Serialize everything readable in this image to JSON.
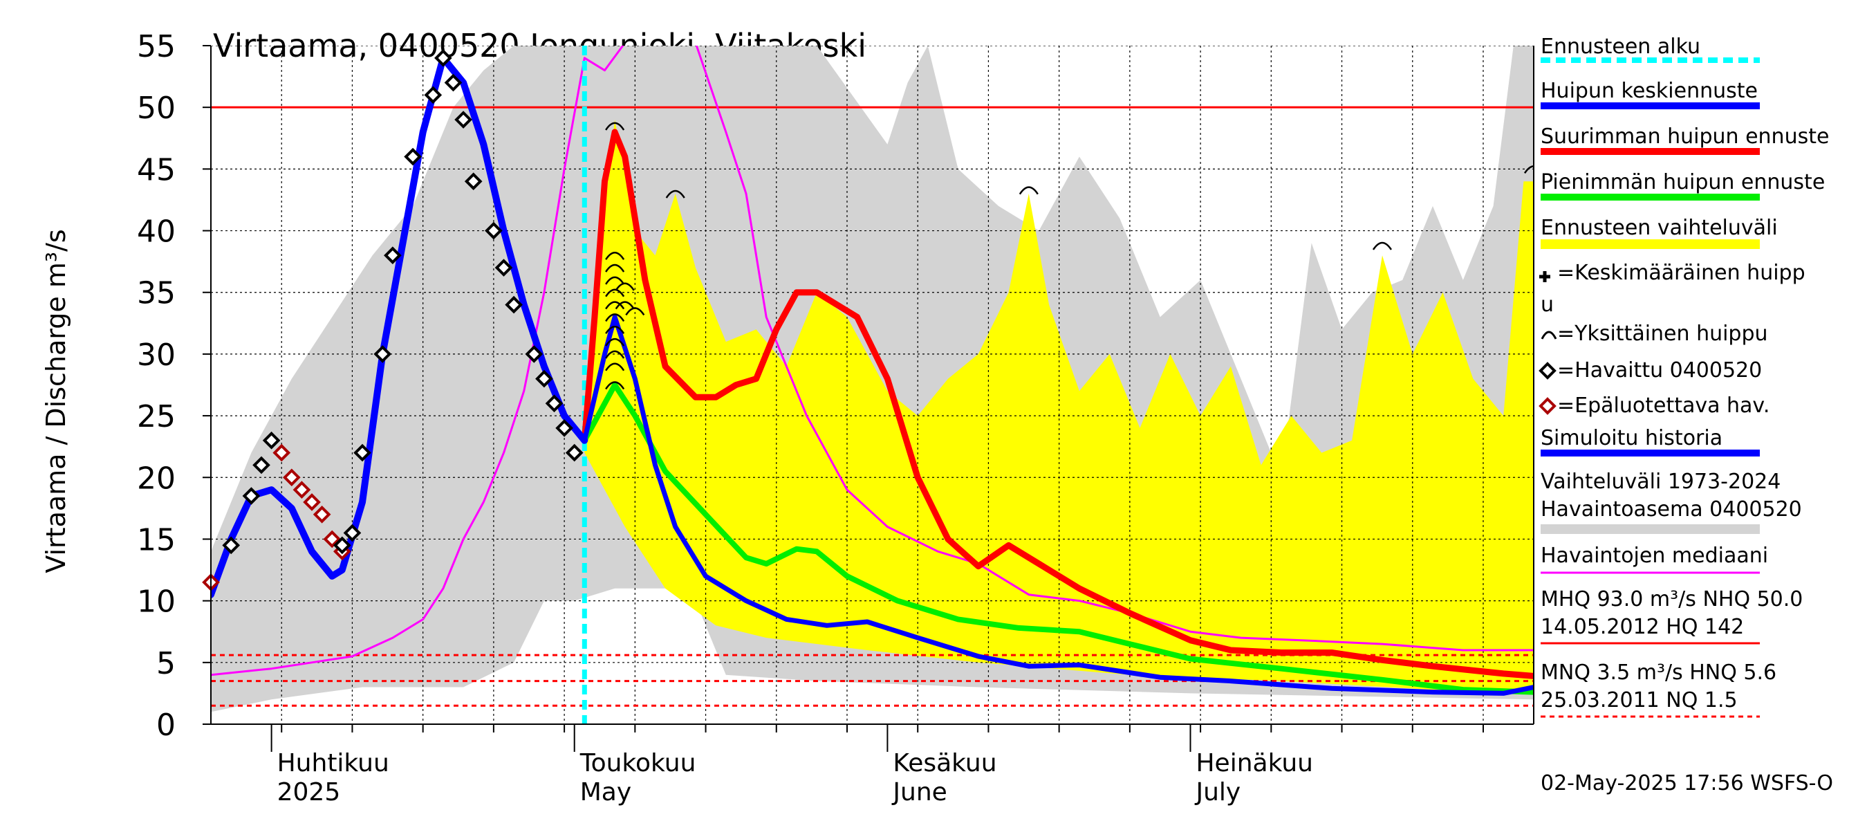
{
  "title": "Virtaama, 0400520 Jongunjoki, Viitakoski",
  "footer": "02-May-2025 17:56 WSFS-O",
  "legend": {
    "forecast_start": "Ennusteen alku",
    "mean_peak_forecast": "Huipun keskiennuste",
    "max_peak_forecast": "Suurimman huipun ennuste",
    "min_peak_forecast": "Pienimmän huipun ennuste",
    "forecast_range": "Ennusteen vaihteluväli",
    "avg_peak_line1": "=Keskimääräinen huipp",
    "avg_peak_line2": "u",
    "single_peak": "=Yksittäinen huippu",
    "observed": "=Havaittu 0400520",
    "unreliable": "=Epäluotettava hav.",
    "simulated": "Simuloitu historia",
    "range_line1": "Vaihteluväli 1973-2024",
    "range_line2": " Havaintoasema 0400520",
    "median": "Havaintojen mediaani",
    "stats1_line1": "MHQ 93.0 m³/s NHQ 50.0",
    "stats1_line2": "14.05.2012 HQ  142",
    "stats2_line1": "MNQ  3.5 m³/s HNQ  5.6",
    "stats2_line2": "25.03.2011 NQ  1.5"
  },
  "colors": {
    "history_range": "#d3d3d3",
    "forecast_range": "#ffff00",
    "mean": "#0000ff",
    "max": "#ff0000",
    "min": "#00ee00",
    "median": "#ff00ff",
    "forecast_start": "#00ffff",
    "observed": "#000000",
    "unreliable": "#aa0000",
    "ref_line": "#ff0000"
  },
  "chart_data": {
    "type": "line",
    "title": "Virtaama, 0400520 Jongunjoki, Viitakoski",
    "ylabel": "Virtaama / Discharge    m³/s",
    "ylim": [
      0,
      55
    ],
    "y_ticks": [
      0,
      5,
      10,
      15,
      20,
      25,
      30,
      35,
      40,
      45,
      50,
      55
    ],
    "x_range": [
      "2025-03-26",
      "2025-08-04"
    ],
    "month_labels": [
      {
        "date": "2025-04-01",
        "fi": "Huhtikuu",
        "en": "2025"
      },
      {
        "date": "2025-05-01",
        "fi": "Toukokuu",
        "en": "May"
      },
      {
        "date": "2025-06-01",
        "fi": "Kesäkuu",
        "en": "June"
      },
      {
        "date": "2025-07-01",
        "fi": "Heinäkuu",
        "en": "July"
      }
    ],
    "forecast_start": "2025-05-02",
    "reference_lines": [
      {
        "value": 50.0,
        "style": "solid"
      },
      {
        "value": 5.6,
        "style": "dashed"
      },
      {
        "value": 3.5,
        "style": "dashed"
      },
      {
        "value": 1.5,
        "style": "dashed"
      }
    ],
    "grid": true,
    "legend_position": "right",
    "history_range_upper": [
      [
        "2025-03-26",
        14
      ],
      [
        "2025-03-30",
        22
      ],
      [
        "2025-04-03",
        28
      ],
      [
        "2025-04-07",
        33
      ],
      [
        "2025-04-11",
        38
      ],
      [
        "2025-04-15",
        42
      ],
      [
        "2025-04-19",
        50
      ],
      [
        "2025-04-22",
        53
      ],
      [
        "2025-04-25",
        55
      ],
      [
        "2025-05-01",
        55
      ],
      [
        "2025-05-15",
        55
      ],
      [
        "2025-05-25",
        55
      ],
      [
        "2025-06-01",
        47
      ],
      [
        "2025-06-03",
        52
      ],
      [
        "2025-06-05",
        55
      ],
      [
        "2025-06-08",
        45
      ],
      [
        "2025-06-12",
        42
      ],
      [
        "2025-06-16",
        40
      ],
      [
        "2025-06-20",
        46
      ],
      [
        "2025-06-24",
        41
      ],
      [
        "2025-06-28",
        33
      ],
      [
        "2025-07-02",
        36
      ],
      [
        "2025-07-06",
        28
      ],
      [
        "2025-07-10",
        20
      ],
      [
        "2025-07-13",
        39
      ],
      [
        "2025-07-16",
        32
      ],
      [
        "2025-07-19",
        35
      ],
      [
        "2025-07-22",
        36
      ],
      [
        "2025-07-25",
        42
      ],
      [
        "2025-07-28",
        36
      ],
      [
        "2025-07-31",
        42
      ],
      [
        "2025-08-02",
        55
      ],
      [
        "2025-08-04",
        55
      ]
    ],
    "history_range_lower": [
      [
        "2025-03-26",
        1
      ],
      [
        "2025-04-01",
        2
      ],
      [
        "2025-04-10",
        3
      ],
      [
        "2025-04-20",
        3
      ],
      [
        "2025-04-25",
        5
      ],
      [
        "2025-04-28",
        10
      ],
      [
        "2025-05-01",
        10
      ],
      [
        "2025-05-05",
        11
      ],
      [
        "2025-05-10",
        11
      ],
      [
        "2025-05-13",
        10
      ],
      [
        "2025-05-16",
        4
      ],
      [
        "2025-05-25",
        3.5
      ],
      [
        "2025-06-10",
        3
      ],
      [
        "2025-07-01",
        2.5
      ],
      [
        "2025-08-04",
        2
      ]
    ],
    "forecast_range_upper": [
      [
        "2025-05-02",
        22
      ],
      [
        "2025-05-03",
        35
      ],
      [
        "2025-05-05",
        49
      ],
      [
        "2025-05-07",
        40
      ],
      [
        "2025-05-09",
        38
      ],
      [
        "2025-05-11",
        43
      ],
      [
        "2025-05-13",
        37
      ],
      [
        "2025-05-16",
        31
      ],
      [
        "2025-05-19",
        32
      ],
      [
        "2025-05-22",
        29
      ],
      [
        "2025-05-25",
        35
      ],
      [
        "2025-05-28",
        33
      ],
      [
        "2025-06-01",
        27
      ],
      [
        "2025-06-04",
        25
      ],
      [
        "2025-06-07",
        28
      ],
      [
        "2025-06-10",
        30
      ],
      [
        "2025-06-13",
        35
      ],
      [
        "2025-06-15",
        43
      ],
      [
        "2025-06-17",
        34
      ],
      [
        "2025-06-20",
        27
      ],
      [
        "2025-06-23",
        30
      ],
      [
        "2025-06-26",
        24
      ],
      [
        "2025-06-29",
        30
      ],
      [
        "2025-07-02",
        25
      ],
      [
        "2025-07-05",
        29
      ],
      [
        "2025-07-08",
        21
      ],
      [
        "2025-07-11",
        25
      ],
      [
        "2025-07-14",
        22
      ],
      [
        "2025-07-17",
        23
      ],
      [
        "2025-07-20",
        38
      ],
      [
        "2025-07-23",
        30
      ],
      [
        "2025-07-26",
        35
      ],
      [
        "2025-07-29",
        28
      ],
      [
        "2025-08-01",
        25
      ],
      [
        "2025-08-03",
        44
      ],
      [
        "2025-08-04",
        44
      ]
    ],
    "forecast_range_lower": [
      [
        "2025-05-02",
        22
      ],
      [
        "2025-05-06",
        16
      ],
      [
        "2025-05-10",
        11
      ],
      [
        "2025-05-15",
        8
      ],
      [
        "2025-05-20",
        7
      ],
      [
        "2025-05-30",
        6
      ],
      [
        "2025-06-10",
        5
      ],
      [
        "2025-06-25",
        4
      ],
      [
        "2025-07-10",
        3.5
      ],
      [
        "2025-07-25",
        2.8
      ],
      [
        "2025-08-04",
        2.5
      ]
    ],
    "series": [
      {
        "name": "Simuloitu historia",
        "color": "#0000ff",
        "width": 10,
        "values": [
          [
            "2025-03-26",
            10.5
          ],
          [
            "2025-03-28",
            15
          ],
          [
            "2025-03-30",
            18.5
          ],
          [
            "2025-04-01",
            19
          ],
          [
            "2025-04-03",
            17.5
          ],
          [
            "2025-04-05",
            14
          ],
          [
            "2025-04-07",
            12
          ],
          [
            "2025-04-08",
            12.5
          ],
          [
            "2025-04-10",
            18
          ],
          [
            "2025-04-12",
            30
          ],
          [
            "2025-04-14",
            39
          ],
          [
            "2025-04-16",
            48
          ],
          [
            "2025-04-18",
            54
          ],
          [
            "2025-04-20",
            52
          ],
          [
            "2025-04-22",
            47
          ],
          [
            "2025-04-24",
            40
          ],
          [
            "2025-04-26",
            34
          ],
          [
            "2025-04-28",
            29
          ],
          [
            "2025-04-30",
            25
          ],
          [
            "2025-05-02",
            23
          ]
        ]
      },
      {
        "name": "Huipun keskiennuste",
        "color": "#0000ff",
        "width": 7,
        "values": [
          [
            "2025-05-02",
            23
          ],
          [
            "2025-05-04",
            30
          ],
          [
            "2025-05-05",
            33
          ],
          [
            "2025-05-07",
            28
          ],
          [
            "2025-05-09",
            21
          ],
          [
            "2025-05-11",
            16
          ],
          [
            "2025-05-14",
            12
          ],
          [
            "2025-05-18",
            10
          ],
          [
            "2025-05-22",
            8.5
          ],
          [
            "2025-05-26",
            8
          ],
          [
            "2025-05-30",
            8.3
          ],
          [
            "2025-06-04",
            7
          ],
          [
            "2025-06-10",
            5.5
          ],
          [
            "2025-06-15",
            4.7
          ],
          [
            "2025-06-20",
            4.8
          ],
          [
            "2025-06-28",
            3.8
          ],
          [
            "2025-07-05",
            3.5
          ],
          [
            "2025-07-15",
            2.9
          ],
          [
            "2025-07-25",
            2.6
          ],
          [
            "2025-08-01",
            2.5
          ],
          [
            "2025-08-04",
            3
          ]
        ]
      },
      {
        "name": "Suurimman huipun ennuste",
        "color": "#ff0000",
        "width": 9,
        "values": [
          [
            "2025-05-02",
            23
          ],
          [
            "2025-05-03",
            33
          ],
          [
            "2025-05-04",
            44
          ],
          [
            "2025-05-05",
            48
          ],
          [
            "2025-05-06",
            46
          ],
          [
            "2025-05-08",
            36
          ],
          [
            "2025-05-10",
            29
          ],
          [
            "2025-05-13",
            26.5
          ],
          [
            "2025-05-15",
            26.5
          ],
          [
            "2025-05-17",
            27.5
          ],
          [
            "2025-05-19",
            28
          ],
          [
            "2025-05-21",
            32
          ],
          [
            "2025-05-23",
            35
          ],
          [
            "2025-05-25",
            35
          ],
          [
            "2025-05-27",
            34
          ],
          [
            "2025-05-29",
            33
          ],
          [
            "2025-06-01",
            28
          ],
          [
            "2025-06-04",
            20
          ],
          [
            "2025-06-07",
            15
          ],
          [
            "2025-06-10",
            12.8
          ],
          [
            "2025-06-13",
            14.5
          ],
          [
            "2025-06-16",
            13
          ],
          [
            "2025-06-20",
            11
          ],
          [
            "2025-06-25",
            9
          ],
          [
            "2025-07-01",
            6.8
          ],
          [
            "2025-07-05",
            6
          ],
          [
            "2025-07-10",
            5.8
          ],
          [
            "2025-07-15",
            5.8
          ],
          [
            "2025-07-20",
            5.2
          ],
          [
            "2025-07-25",
            4.7
          ],
          [
            "2025-08-01",
            4.1
          ],
          [
            "2025-08-04",
            3.9
          ]
        ]
      },
      {
        "name": "Pienimmän huipun ennuste",
        "color": "#00ee00",
        "width": 8,
        "values": [
          [
            "2025-05-02",
            23
          ],
          [
            "2025-05-04",
            26
          ],
          [
            "2025-05-05",
            27.5
          ],
          [
            "2025-05-07",
            25
          ],
          [
            "2025-05-10",
            20.5
          ],
          [
            "2025-05-14",
            17
          ],
          [
            "2025-05-18",
            13.5
          ],
          [
            "2025-05-20",
            13
          ],
          [
            "2025-05-23",
            14.2
          ],
          [
            "2025-05-25",
            14
          ],
          [
            "2025-05-28",
            12
          ],
          [
            "2025-06-02",
            10
          ],
          [
            "2025-06-08",
            8.5
          ],
          [
            "2025-06-14",
            7.8
          ],
          [
            "2025-06-20",
            7.5
          ],
          [
            "2025-06-25",
            6.5
          ],
          [
            "2025-07-01",
            5.3
          ],
          [
            "2025-07-10",
            4.5
          ],
          [
            "2025-07-20",
            3.6
          ],
          [
            "2025-07-28",
            2.8
          ],
          [
            "2025-08-04",
            2.6
          ]
        ]
      },
      {
        "name": "Havaintojen mediaani",
        "color": "#ff00ff",
        "width": 3,
        "values": [
          [
            "2025-03-26",
            4
          ],
          [
            "2025-04-01",
            4.5
          ],
          [
            "2025-04-05",
            5
          ],
          [
            "2025-04-09",
            5.5
          ],
          [
            "2025-04-13",
            7
          ],
          [
            "2025-04-16",
            8.5
          ],
          [
            "2025-04-18",
            11
          ],
          [
            "2025-04-20",
            15
          ],
          [
            "2025-04-22",
            18
          ],
          [
            "2025-04-24",
            22
          ],
          [
            "2025-04-26",
            27
          ],
          [
            "2025-04-28",
            35
          ],
          [
            "2025-04-30",
            45
          ],
          [
            "2025-05-02",
            54
          ],
          [
            "2025-05-04",
            53
          ],
          [
            "2025-05-06",
            56
          ],
          [
            "2025-05-08",
            58
          ],
          [
            "2025-05-11",
            56
          ],
          [
            "2025-05-13",
            58
          ],
          [
            "2025-05-16",
            48
          ],
          [
            "2025-05-18",
            43
          ],
          [
            "2025-05-20",
            33
          ],
          [
            "2025-05-24",
            25
          ],
          [
            "2025-05-28",
            19
          ],
          [
            "2025-06-01",
            16
          ],
          [
            "2025-06-06",
            14
          ],
          [
            "2025-06-10",
            13
          ],
          [
            "2025-06-15",
            10.5
          ],
          [
            "2025-06-20",
            10
          ],
          [
            "2025-06-25",
            9
          ],
          [
            "2025-07-01",
            7.5
          ],
          [
            "2025-07-06",
            7
          ],
          [
            "2025-07-12",
            6.8
          ],
          [
            "2025-07-20",
            6.5
          ],
          [
            "2025-07-28",
            6
          ],
          [
            "2025-08-04",
            6
          ]
        ]
      }
    ],
    "observed": [
      [
        "2025-03-28",
        14.5
      ],
      [
        "2025-03-30",
        18.5
      ],
      [
        "2025-03-31",
        21
      ],
      [
        "2025-04-01",
        23
      ],
      [
        "2025-04-08",
        14.5
      ],
      [
        "2025-04-09",
        15.5
      ],
      [
        "2025-04-10",
        22
      ],
      [
        "2025-04-12",
        30
      ],
      [
        "2025-04-13",
        38
      ],
      [
        "2025-04-15",
        46
      ],
      [
        "2025-04-17",
        51
      ],
      [
        "2025-04-18",
        54
      ],
      [
        "2025-04-19",
        52
      ],
      [
        "2025-04-20",
        49
      ],
      [
        "2025-04-21",
        44
      ],
      [
        "2025-04-23",
        40
      ],
      [
        "2025-04-24",
        37
      ],
      [
        "2025-04-25",
        34
      ],
      [
        "2025-04-27",
        30
      ],
      [
        "2025-04-28",
        28
      ],
      [
        "2025-04-29",
        26
      ],
      [
        "2025-04-30",
        24
      ],
      [
        "2025-05-01",
        22
      ]
    ],
    "unreliable": [
      [
        "2025-03-26",
        11.5
      ],
      [
        "2025-04-02",
        22
      ],
      [
        "2025-04-03",
        20
      ],
      [
        "2025-04-04",
        19
      ],
      [
        "2025-04-05",
        18
      ],
      [
        "2025-04-06",
        17
      ],
      [
        "2025-04-07",
        15
      ],
      [
        "2025-04-08",
        14
      ]
    ],
    "single_peaks": [
      [
        "2025-05-05",
        48.5
      ],
      [
        "2025-05-11",
        43
      ],
      [
        "2025-06-15",
        43.3
      ],
      [
        "2025-07-20",
        38.8
      ],
      [
        "2025-08-04",
        45
      ],
      [
        "2025-05-05",
        38
      ],
      [
        "2025-05-05",
        37
      ],
      [
        "2025-05-05",
        36
      ],
      [
        "2025-05-05",
        35
      ],
      [
        "2025-05-05",
        34
      ],
      [
        "2025-05-05",
        33
      ],
      [
        "2025-05-05",
        32
      ],
      [
        "2025-05-05",
        31
      ],
      [
        "2025-05-05",
        30
      ],
      [
        "2025-05-05",
        29
      ],
      [
        "2025-05-05",
        27.5
      ],
      [
        "2025-05-06",
        35.5
      ],
      [
        "2025-05-06",
        34
      ],
      [
        "2025-05-07",
        33.5
      ]
    ]
  }
}
